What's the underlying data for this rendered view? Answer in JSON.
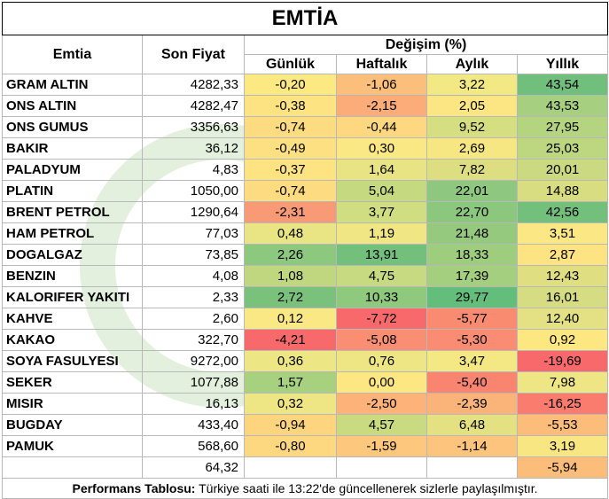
{
  "title": "EMTİA",
  "headers": {
    "commodity": "Emtia",
    "last_price": "Son Fiyat",
    "change_group": "Değişim (%)",
    "daily": "Günlük",
    "weekly": "Haftalık",
    "monthly": "Aylık",
    "yearly": "Yıllık"
  },
  "rows": [
    {
      "name": "GRAM ALTIN",
      "price": "4282,33",
      "daily": "-0,20",
      "weekly": "-1,06",
      "monthly": "3,22",
      "yearly": "43,54",
      "colors": [
        "#fde981",
        "#fcbe7b",
        "#f2e884",
        "#70bf7c"
      ]
    },
    {
      "name": "ONS ALTIN",
      "price": "4282,47",
      "daily": "-0,38",
      "weekly": "-2,15",
      "monthly": "2,05",
      "yearly": "43,53",
      "colors": [
        "#fde381",
        "#fcac78",
        "#fbe683",
        "#a6d07f"
      ]
    },
    {
      "name": "ONS GUMUS",
      "price": "3356,63",
      "daily": "-0,74",
      "weekly": "-0,44",
      "monthly": "9,52",
      "yearly": "27,95",
      "colors": [
        "#fddb80",
        "#fed880",
        "#d5df82",
        "#b5d47f"
      ]
    },
    {
      "name": "BAKIR",
      "price": "36,12",
      "daily": "-0,49",
      "weekly": "0,30",
      "monthly": "2,69",
      "yearly": "25,03",
      "colors": [
        "#fde081",
        "#f9e883",
        "#f6e783",
        "#bdd680"
      ]
    },
    {
      "name": "PALADYUM",
      "price": "4,83",
      "daily": "-0,37",
      "weekly": "1,64",
      "monthly": "7,82",
      "yearly": "20,01",
      "colors": [
        "#fde381",
        "#e8e483",
        "#ddde82",
        "#cbd980"
      ]
    },
    {
      "name": "PLATIN",
      "price": "1050,00",
      "daily": "-0,74",
      "weekly": "5,04",
      "monthly": "22,01",
      "yearly": "14,88",
      "colors": [
        "#fddb80",
        "#c4d980",
        "#8ec880",
        "#d9dd82"
      ]
    },
    {
      "name": "BRENT PETROL",
      "price": "1290,64",
      "daily": "-2,31",
      "weekly": "3,77",
      "monthly": "22,70",
      "yearly": "42,56",
      "colors": [
        "#f79a75",
        "#d1dd81",
        "#8bc77d",
        "#73bf7c"
      ]
    },
    {
      "name": "HAM PETROL",
      "price": "77,03",
      "daily": "0,48",
      "weekly": "1,19",
      "monthly": "21,48",
      "yearly": "3,51",
      "colors": [
        "#eae584",
        "#f0e683",
        "#94c97e",
        "#fbe783"
      ]
    },
    {
      "name": "DOGALGAZ",
      "price": "73,85",
      "daily": "2,26",
      "weekly": "13,91",
      "monthly": "18,33",
      "yearly": "2,87",
      "colors": [
        "#8cc87e",
        "#73bf7c",
        "#9fcd7e",
        "#fde381"
      ]
    },
    {
      "name": "BENZIN",
      "price": "4,08",
      "daily": "1,08",
      "weekly": "4,75",
      "monthly": "17,39",
      "yearly": "12,43",
      "colors": [
        "#c0d780",
        "#c8da81",
        "#a3cf7e",
        "#dfdf82"
      ]
    },
    {
      "name": "KALORIFER YAKITI",
      "price": "2,33",
      "daily": "2,72",
      "weekly": "10,33",
      "monthly": "29,77",
      "yearly": "16,01",
      "colors": [
        "#7ac27c",
        "#8fc97e",
        "#63be7b",
        "#d5dc81"
      ]
    },
    {
      "name": "KAHVE",
      "price": "2,60",
      "daily": "0,12",
      "weekly": "-7,72",
      "monthly": "-5,77",
      "yearly": "12,40",
      "colors": [
        "#f9e884",
        "#f8696b",
        "#f98b71",
        "#e3e183"
      ]
    },
    {
      "name": "KAKAO",
      "price": "322,70",
      "daily": "-4,21",
      "weekly": "-5,08",
      "monthly": "-5,30",
      "yearly": "0,92",
      "colors": [
        "#f8696b",
        "#f98e72",
        "#f98c72",
        "#fde781"
      ]
    },
    {
      "name": "SOYA FASULYESI",
      "price": "9272,00",
      "daily": "0,36",
      "weekly": "0,76",
      "monthly": "3,47",
      "yearly": "-19,69",
      "colors": [
        "#ece684",
        "#eee584",
        "#f3e884",
        "#f8696b"
      ]
    },
    {
      "name": "SEKER",
      "price": "1077,88",
      "daily": "1,57",
      "weekly": "0,00",
      "monthly": "-5,40",
      "yearly": "7,98",
      "colors": [
        "#a7d07f",
        "#fde782",
        "#f98470",
        "#eee584"
      ]
    },
    {
      "name": "MISIR",
      "price": "16,13",
      "daily": "0,32",
      "weekly": "-2,50",
      "monthly": "-2,39",
      "yearly": "-16,25",
      "colors": [
        "#eee584",
        "#fcb279",
        "#fab47a",
        "#f97c6f"
      ]
    },
    {
      "name": "BUGDAY",
      "price": "433,40",
      "daily": "-0,94",
      "weekly": "4,57",
      "monthly": "6,48",
      "yearly": "-5,53",
      "colors": [
        "#fdd57f",
        "#c9da81",
        "#e4e183",
        "#fcbd7b"
      ]
    },
    {
      "name": "PAMUK",
      "price": "568,60",
      "daily": "-0,80",
      "weekly": "-1,59",
      "monthly": "-1,14",
      "yearly": "3,19",
      "colors": [
        "#fdd880",
        "#fdc87d",
        "#fdc47d",
        "#f8e683"
      ]
    },
    {
      "name": "",
      "price": "64,32",
      "daily": "",
      "weekly": "",
      "monthly": "",
      "yearly": "-5,94",
      "colors": [
        "#ffffff",
        "#ffffff",
        "#ffffff",
        "#fcbd7b"
      ]
    }
  ],
  "footer": {
    "bold": "Performans Tablosu:",
    "text": " Türkiye saati ile 13:22'de güncellenerek sizlerle paylaşılmıştır."
  },
  "colors": {
    "border": "#b8b8b8",
    "watermark_green": "#5aa83a"
  }
}
